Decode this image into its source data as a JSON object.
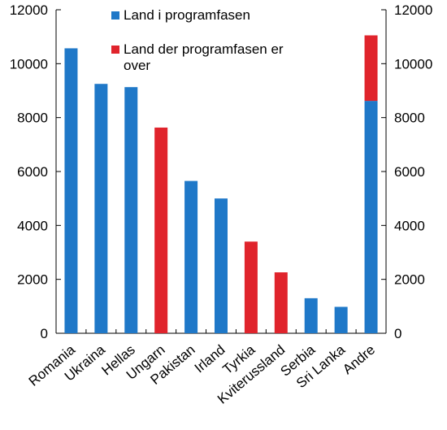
{
  "chart_data": {
    "type": "bar",
    "categories": [
      "Romania",
      "Ukraina",
      "Hellas",
      "Ungarn",
      "Pakistan",
      "Irland",
      "Tyrkia",
      "Kviterussland",
      "Serbia",
      "Sri Lanka",
      "Andre"
    ],
    "series": [
      {
        "name": "Land i programfasen",
        "color": "#1f78c8",
        "values": [
          10570,
          9250,
          9130,
          0,
          5650,
          5000,
          0,
          0,
          1300,
          980,
          8620
        ]
      },
      {
        "name": "Land der programfasen er over",
        "color": "#e0242c",
        "values": [
          0,
          0,
          0,
          7630,
          0,
          0,
          3400,
          2260,
          0,
          0,
          2430
        ]
      }
    ],
    "stacked": true,
    "ylim": [
      0,
      12000
    ],
    "yticks": [
      0,
      2000,
      4000,
      6000,
      8000,
      10000,
      12000
    ],
    "ytick_labels": [
      "0",
      "2000",
      "4000",
      "6000",
      "8000",
      "10000",
      "12000"
    ],
    "secondary_ytick_labels": [
      "0",
      "2000",
      "4000",
      "6000",
      "8000",
      "10000",
      "12000"
    ],
    "legend": {
      "placement": "top-center",
      "entries": [
        {
          "label_lines": [
            "Land i programfasen"
          ],
          "color": "#1f78c8"
        },
        {
          "label_lines": [
            "Land der programfasen er",
            "over"
          ],
          "color": "#e0242c"
        }
      ]
    },
    "grid": false,
    "title": "",
    "xlabel": "",
    "ylabel": ""
  }
}
